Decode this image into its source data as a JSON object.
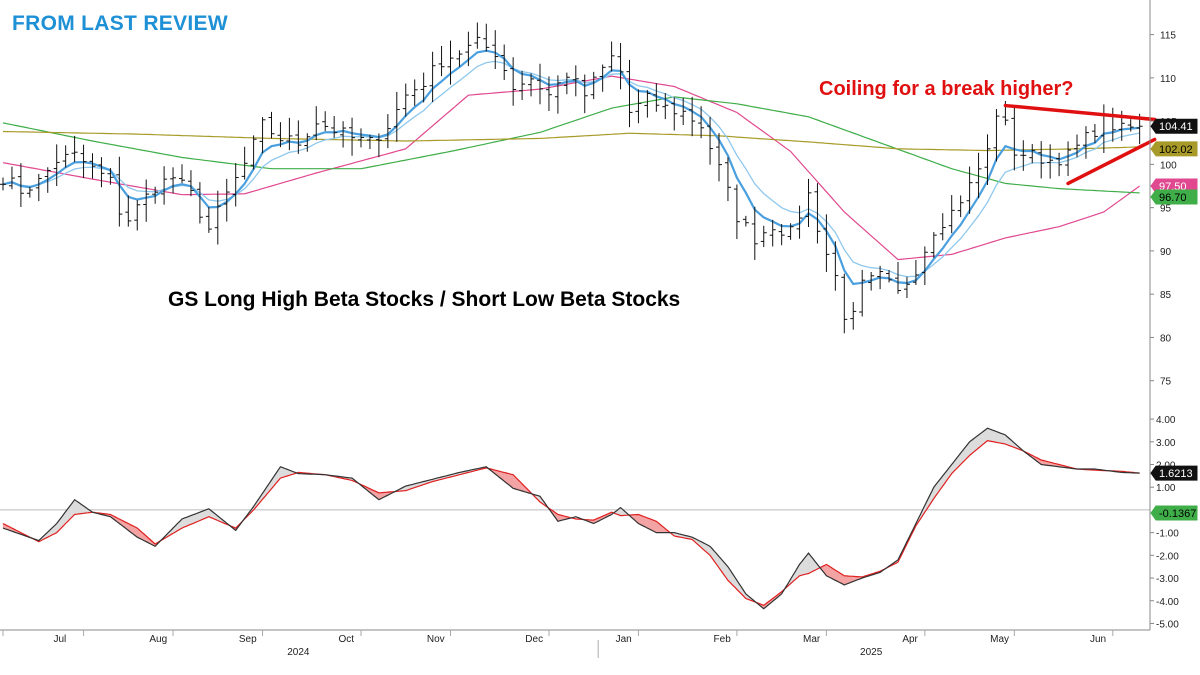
{
  "header": {
    "label": "FROM LAST REVIEW",
    "color": "#1e90d6"
  },
  "chart_title": "GS Long High Beta Stocks / Short Low Beta Stocks",
  "annotation": {
    "text": "Coiling for a break higher?",
    "color": "#e01010"
  },
  "colors": {
    "bars": "#111111",
    "ema_fast": "#4a9fde",
    "ema_slow": "#8ec8ee",
    "ma_pink": "#e0488f",
    "ma_green": "#3fae49",
    "ma_olive": "#a89a28",
    "trendline": "#e01010",
    "macd_line": "#333333",
    "macd_signal": "#e02020",
    "fill_positive": "#dcdcdc",
    "fill_negative": "#f3a3a3"
  },
  "chart_data": [
    {
      "type": "ohlc",
      "title": "GS Long High Beta Stocks / Short Low Beta Stocks",
      "ylim": [
        73,
        119
      ],
      "yticks": [
        75,
        80,
        85,
        90,
        95,
        100,
        105,
        110,
        115
      ],
      "x_months": [
        "Jul",
        "Aug",
        "Sep",
        "Oct",
        "Nov",
        "Dec",
        "Jan",
        "Feb",
        "Mar",
        "Apr",
        "May",
        "Jun"
      ],
      "year_labels": [
        "2024",
        "2025"
      ],
      "close_keypoints": [
        [
          0,
          98.5
        ],
        [
          2,
          97
        ],
        [
          4,
          98
        ],
        [
          6,
          100.5
        ],
        [
          8,
          101
        ],
        [
          10,
          99.5
        ],
        [
          12,
          98
        ],
        [
          13.5,
          93
        ],
        [
          15,
          95
        ],
        [
          17,
          97.5
        ],
        [
          19,
          98.5
        ],
        [
          21,
          96.5
        ],
        [
          23,
          92.5
        ],
        [
          25,
          96.5
        ],
        [
          27,
          100
        ],
        [
          29,
          104.5
        ],
        [
          31,
          103
        ],
        [
          33,
          102.5
        ],
        [
          35,
          105
        ],
        [
          37,
          104
        ],
        [
          39,
          103
        ],
        [
          41,
          102.5
        ],
        [
          43,
          104.5
        ],
        [
          45,
          108
        ],
        [
          47,
          109.5
        ],
        [
          49,
          112
        ],
        [
          51,
          113
        ],
        [
          53,
          114
        ],
        [
          55,
          113
        ],
        [
          57,
          109
        ],
        [
          59,
          110
        ],
        [
          61,
          108
        ],
        [
          63,
          110.5
        ],
        [
          65,
          108
        ],
        [
          67,
          111
        ],
        [
          68.5,
          113
        ],
        [
          70,
          106
        ],
        [
          72,
          107.5
        ],
        [
          74,
          106.5
        ],
        [
          76,
          106
        ],
        [
          78,
          104.5
        ],
        [
          80,
          99.5
        ],
        [
          82,
          94
        ],
        [
          84,
          91.5
        ],
        [
          86,
          93
        ],
        [
          88,
          92
        ],
        [
          90,
          96.5
        ],
        [
          91.5,
          91
        ],
        [
          93,
          87
        ],
        [
          94.5,
          80.5
        ],
        [
          96,
          86
        ],
        [
          98,
          87
        ],
        [
          100,
          85
        ],
        [
          102,
          88
        ],
        [
          104,
          92.5
        ],
        [
          106,
          94.5
        ],
        [
          108,
          97.5
        ],
        [
          110,
          101.5
        ],
        [
          111,
          106
        ],
        [
          112,
          104.5
        ],
        [
          113,
          101.5
        ],
        [
          115,
          101
        ],
        [
          117,
          100.5
        ],
        [
          119,
          101
        ],
        [
          121,
          103
        ],
        [
          123,
          105
        ],
        [
          125,
          104
        ],
        [
          127,
          104.41
        ]
      ],
      "series": [
        {
          "name": "EMA fast",
          "color_key": "ema_fast"
        },
        {
          "name": "EMA slow",
          "color_key": "ema_slow"
        },
        {
          "name": "MA pink",
          "color_key": "ma_pink",
          "keypoints": [
            [
              0,
              100.2
            ],
            [
              10,
              98.3
            ],
            [
              20,
              96.5
            ],
            [
              27,
              96.6
            ],
            [
              35,
              99
            ],
            [
              45,
              101.8
            ],
            [
              52,
              108
            ],
            [
              60,
              108.7
            ],
            [
              68,
              110.2
            ],
            [
              75,
              109
            ],
            [
              82,
              106
            ],
            [
              88,
              101.5
            ],
            [
              94,
              94.5
            ],
            [
              100,
              89
            ],
            [
              106,
              89.6
            ],
            [
              112,
              91.5
            ],
            [
              118,
              92.8
            ],
            [
              123,
              94.5
            ],
            [
              127,
              97.5
            ]
          ]
        },
        {
          "name": "MA green",
          "color_key": "ma_green",
          "keypoints": [
            [
              0,
              104.8
            ],
            [
              10,
              102.7
            ],
            [
              20,
              100.8
            ],
            [
              30,
              99.5
            ],
            [
              40,
              99.5
            ],
            [
              50,
              101.5
            ],
            [
              60,
              103.7
            ],
            [
              68,
              106.5
            ],
            [
              75,
              107.8
            ],
            [
              82,
              107
            ],
            [
              90,
              105.5
            ],
            [
              98,
              102.5
            ],
            [
              106,
              99.5
            ],
            [
              112,
              97.8
            ],
            [
              118,
              97.2
            ],
            [
              127,
              96.7
            ]
          ]
        },
        {
          "name": "MA olive",
          "color_key": "ma_olive",
          "keypoints": [
            [
              0,
              103.8
            ],
            [
              15,
              103.5
            ],
            [
              30,
              103
            ],
            [
              45,
              102.7
            ],
            [
              60,
              103
            ],
            [
              70,
              103.6
            ],
            [
              80,
              103.3
            ],
            [
              90,
              102.6
            ],
            [
              100,
              101.8
            ],
            [
              110,
              101.6
            ],
            [
              120,
              101.8
            ],
            [
              127,
              102.02
            ]
          ]
        }
      ],
      "value_tags": [
        {
          "value": "104.41",
          "price": 104.41,
          "color_key": "bars",
          "text_color": "#ffffff"
        },
        {
          "value": "102.02",
          "price": 102.02,
          "color_key": "ma_olive",
          "text_color": "#000000"
        },
        {
          "value": "97.50",
          "price": 97.5,
          "color_key": "ma_pink",
          "text_color": "#ffffff"
        },
        {
          "value": "96.70",
          "price": 96.7,
          "color_key": "ma_green",
          "text_color": "#000000"
        }
      ],
      "trendlines": [
        {
          "from": [
            112,
            106.8
          ],
          "to": [
            127,
            105.3
          ]
        },
        {
          "from": [
            119,
            97.8
          ],
          "to": [
            127,
            102.3
          ]
        }
      ]
    },
    {
      "type": "macd",
      "ylim": [
        -5.2,
        4.4
      ],
      "yticks": [
        -5,
        -4,
        -3,
        -2,
        -1,
        1,
        2,
        3,
        4
      ],
      "ytick_labels": [
        "-5.00",
        "-4.00",
        "-3.00",
        "-2.00",
        "-1.00",
        "1.00",
        "2.00",
        "3.00",
        "4.00"
      ],
      "zero_line": 0,
      "line": [
        [
          0,
          -0.8
        ],
        [
          4,
          -1.35
        ],
        [
          6,
          -0.6
        ],
        [
          8,
          0.45
        ],
        [
          10,
          -0.1
        ],
        [
          12,
          -0.3
        ],
        [
          15,
          -1.2
        ],
        [
          17,
          -1.6
        ],
        [
          20,
          -0.4
        ],
        [
          23,
          0.05
        ],
        [
          26,
          -0.9
        ],
        [
          28,
          0.15
        ],
        [
          31,
          1.9
        ],
        [
          33,
          1.6
        ],
        [
          36,
          1.55
        ],
        [
          39,
          1.4
        ],
        [
          42,
          0.45
        ],
        [
          45,
          1.05
        ],
        [
          48,
          1.35
        ],
        [
          51,
          1.65
        ],
        [
          54,
          1.9
        ],
        [
          57,
          0.95
        ],
        [
          60,
          0.6
        ],
        [
          62,
          -0.5
        ],
        [
          64,
          -0.3
        ],
        [
          66,
          -0.6
        ],
        [
          68,
          -0.2
        ],
        [
          69,
          0.1
        ],
        [
          71,
          -0.6
        ],
        [
          73,
          -1.0
        ],
        [
          75,
          -1.0
        ],
        [
          77,
          -1.2
        ],
        [
          79,
          -1.6
        ],
        [
          81,
          -2.5
        ],
        [
          83,
          -3.7
        ],
        [
          85,
          -4.35
        ],
        [
          87,
          -3.7
        ],
        [
          89,
          -2.4
        ],
        [
          90,
          -1.9
        ],
        [
          92,
          -2.9
        ],
        [
          94,
          -3.3
        ],
        [
          96,
          -3.0
        ],
        [
          98,
          -2.75
        ],
        [
          100,
          -2.2
        ],
        [
          102,
          -0.6
        ],
        [
          104,
          1.0
        ],
        [
          106,
          2.0
        ],
        [
          108,
          3.0
        ],
        [
          110,
          3.6
        ],
        [
          112,
          3.3
        ],
        [
          114,
          2.6
        ],
        [
          116,
          2.0
        ],
        [
          118,
          1.9
        ],
        [
          120,
          1.8
        ],
        [
          122,
          1.8
        ],
        [
          125,
          1.65
        ],
        [
          127,
          1.62
        ]
      ],
      "signal": [
        [
          0,
          -0.6
        ],
        [
          4,
          -1.4
        ],
        [
          6,
          -1.0
        ],
        [
          8,
          -0.2
        ],
        [
          10,
          -0.1
        ],
        [
          12,
          -0.2
        ],
        [
          15,
          -0.8
        ],
        [
          17,
          -1.5
        ],
        [
          20,
          -0.8
        ],
        [
          23,
          -0.3
        ],
        [
          26,
          -0.8
        ],
        [
          28,
          0.0
        ],
        [
          31,
          1.4
        ],
        [
          33,
          1.65
        ],
        [
          36,
          1.55
        ],
        [
          39,
          1.3
        ],
        [
          42,
          0.75
        ],
        [
          45,
          0.85
        ],
        [
          48,
          1.25
        ],
        [
          51,
          1.55
        ],
        [
          54,
          1.85
        ],
        [
          57,
          1.55
        ],
        [
          60,
          0.35
        ],
        [
          62,
          -0.2
        ],
        [
          64,
          -0.4
        ],
        [
          66,
          -0.45
        ],
        [
          68,
          -0.1
        ],
        [
          69,
          -0.25
        ],
        [
          71,
          -0.2
        ],
        [
          73,
          -0.5
        ],
        [
          75,
          -1.15
        ],
        [
          77,
          -1.3
        ],
        [
          79,
          -2.0
        ],
        [
          81,
          -3.1
        ],
        [
          83,
          -3.9
        ],
        [
          85,
          -4.2
        ],
        [
          87,
          -3.6
        ],
        [
          89,
          -2.9
        ],
        [
          90,
          -2.8
        ],
        [
          92,
          -2.4
        ],
        [
          94,
          -2.9
        ],
        [
          96,
          -2.95
        ],
        [
          98,
          -2.7
        ],
        [
          100,
          -2.3
        ],
        [
          102,
          -0.7
        ],
        [
          104,
          0.5
        ],
        [
          106,
          1.6
        ],
        [
          108,
          2.4
        ],
        [
          110,
          3.05
        ],
        [
          112,
          2.9
        ],
        [
          114,
          2.6
        ],
        [
          116,
          2.2
        ],
        [
          118,
          2.0
        ],
        [
          120,
          1.8
        ],
        [
          122,
          1.75
        ],
        [
          125,
          1.7
        ],
        [
          127,
          1.62
        ]
      ],
      "value_tags": [
        {
          "value": "1.6213",
          "level": 1.62,
          "color_key": "bars",
          "text_color": "#ffffff"
        },
        {
          "value": "-0.1367",
          "level": -0.1367,
          "color_key": "ma_green",
          "text_color": "#000000"
        }
      ]
    }
  ]
}
